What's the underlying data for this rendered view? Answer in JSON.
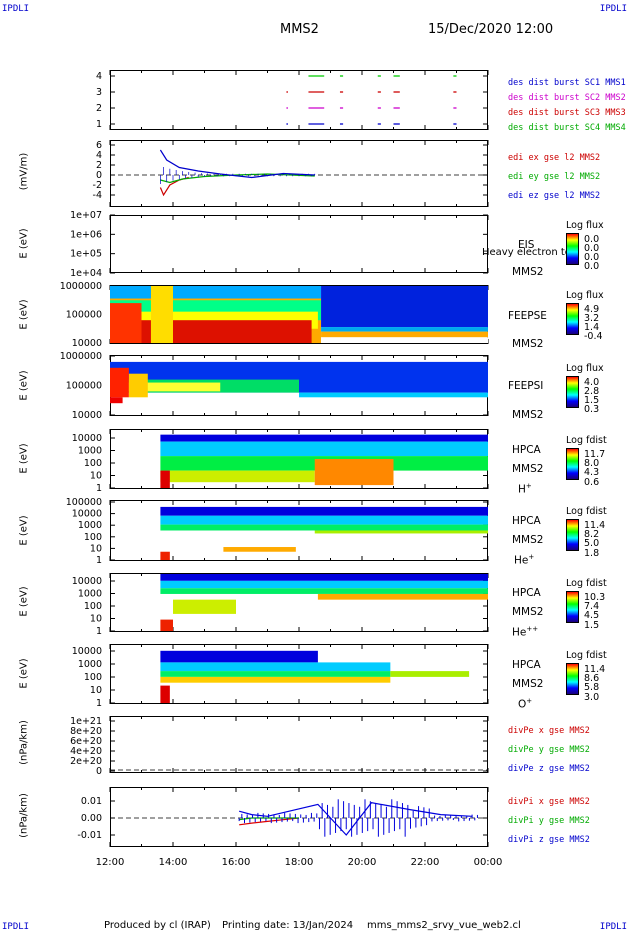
{
  "corners": {
    "tl": "IPDLI",
    "tr": "IPDLI",
    "bl": "IPDLI",
    "br": "IPDLI"
  },
  "header": {
    "title": "MMS2",
    "date": "15/Dec/2020 12:00"
  },
  "footer": {
    "producer": "Produced by cl (IRAP)",
    "printing": "Printing date: 13/Jan/2024",
    "file": "mms_mms2_srvy_vue_web2.cl"
  },
  "colors": {
    "mms1": "#0000cc",
    "mms2": "#cc00cc",
    "mms3": "#cc0000",
    "mms4": "#00cc00",
    "ex": "#cc0000",
    "ey": "#00aa00",
    "ez": "#0000cc"
  },
  "chart_data": [
    {
      "type": "scatter",
      "id": "burst",
      "yticks": [
        "4",
        "3",
        "2",
        "1"
      ],
      "ylim": [
        0.5,
        4.5
      ],
      "legend": [
        "des dist burst SC1 MMS1",
        "des dist burst SC2 MMS2",
        "des dist burst SC3 MMS3",
        "des dist burst SC4 MMS4"
      ],
      "series": [
        {
          "name": "des dist burst SC1 MMS1",
          "y": 1,
          "x_hours": [
            [
              17.6,
              17.65
            ],
            [
              18.3,
              18.8
            ],
            [
              19.3,
              19.4
            ],
            [
              20.5,
              20.6
            ],
            [
              21.0,
              21.2
            ],
            [
              22.9,
              23.0
            ]
          ]
        },
        {
          "name": "des dist burst SC2 MMS2",
          "y": 2,
          "x_hours": [
            [
              17.6,
              17.65
            ],
            [
              18.3,
              18.8
            ],
            [
              19.3,
              19.4
            ],
            [
              20.5,
              20.6
            ],
            [
              21.0,
              21.2
            ],
            [
              22.9,
              23.0
            ]
          ]
        },
        {
          "name": "des dist burst SC3 MMS3",
          "y": 3,
          "x_hours": [
            [
              17.6,
              17.65
            ],
            [
              18.3,
              18.8
            ],
            [
              19.3,
              19.4
            ],
            [
              20.5,
              20.6
            ],
            [
              21.0,
              21.2
            ],
            [
              22.9,
              23.0
            ]
          ]
        },
        {
          "name": "des dist burst SC4 MMS4",
          "y": 4,
          "x_hours": [
            [
              18.3,
              18.8
            ],
            [
              19.3,
              19.4
            ],
            [
              20.5,
              20.6
            ],
            [
              21.0,
              21.2
            ],
            [
              22.9,
              23.0
            ]
          ]
        }
      ]
    },
    {
      "type": "line",
      "id": "edi",
      "ylabel": "(mV/m)",
      "yticks": [
        "6",
        "4",
        "2",
        "0",
        "-2",
        "-4"
      ],
      "ylim": [
        -5,
        6.5
      ],
      "legend": [
        "edi ex gse l2 MMS2",
        "edi ey gse l2 MMS2",
        "edi ez gse l2 MMS2"
      ],
      "series": [
        {
          "name": "edi ex gse l2 MMS2",
          "x": [
            13.6,
            13.7,
            13.9,
            14.2,
            14.5
          ],
          "y": [
            -2.5,
            -4,
            -2,
            -1,
            -0.5
          ]
        },
        {
          "name": "edi ey gse l2 MMS2",
          "x": [
            13.6,
            13.9,
            14.3,
            15,
            16,
            17,
            18.5
          ],
          "y": [
            -1,
            -1.5,
            -0.8,
            -0.3,
            0,
            0.2,
            -0.2
          ]
        },
        {
          "name": "edi ez gse l2 MMS2",
          "x": [
            13.6,
            13.8,
            14.2,
            14.8,
            15.5,
            16.5,
            17.5,
            18.5
          ],
          "y": [
            5,
            3,
            1.5,
            0.8,
            0.2,
            -0.5,
            0.3,
            0
          ]
        }
      ]
    },
    {
      "type": "heatmap",
      "id": "eis",
      "ylabel": "E (eV)",
      "yticks": [
        "1e+07",
        "1e+06",
        "1e+05",
        "1e+04"
      ],
      "labels": [
        "EIS",
        "MMS2"
      ],
      "overlay": "Heavy electron to",
      "cbar_title": "Log flux",
      "cbar_ticks": [
        "0.0",
        "0.0",
        "0.0",
        "0.0"
      ]
    },
    {
      "type": "heatmap",
      "id": "feepse",
      "ylabel": "E (eV)",
      "yticks": [
        "1000000",
        "100000",
        "10000"
      ],
      "labels": [
        "FEEPSE",
        "MMS2"
      ],
      "cbar_title": "Log flux",
      "cbar_ticks": [
        "4.9",
        "3.2",
        "1.4",
        "-0.4"
      ]
    },
    {
      "type": "heatmap",
      "id": "feepsi",
      "ylabel": "E (eV)",
      "yticks": [
        "1000000",
        "100000",
        "10000"
      ],
      "labels": [
        "FEEPSI",
        "MMS2"
      ],
      "cbar_title": "Log flux",
      "cbar_ticks": [
        "4.0",
        "2.8",
        "1.5",
        "0.3"
      ]
    },
    {
      "type": "heatmap",
      "id": "hpca_h",
      "ylabel": "E (eV)",
      "yticks": [
        "10000",
        "1000",
        "100",
        "10",
        "1"
      ],
      "labels": [
        "HPCA",
        "MMS2",
        "H",
        "+"
      ],
      "cbar_title": "Log fdist",
      "cbar_ticks": [
        "11.7",
        "8.0",
        "4.3",
        "0.6"
      ]
    },
    {
      "type": "heatmap",
      "id": "hpca_he",
      "ylabel": "E (eV)",
      "yticks": [
        "100000",
        "10000",
        "1000",
        "100",
        "10",
        "1"
      ],
      "labels": [
        "HPCA",
        "MMS2",
        "He",
        "+"
      ],
      "cbar_title": "Log fdist",
      "cbar_ticks": [
        "11.4",
        "8.2",
        "5.0",
        "1.8"
      ]
    },
    {
      "type": "heatmap",
      "id": "hpca_hepp",
      "ylabel": "E (eV)",
      "yticks": [
        "10000",
        "1000",
        "100",
        "10",
        "1"
      ],
      "labels": [
        "HPCA",
        "MMS2",
        "He",
        "++"
      ],
      "cbar_title": "Log fdist",
      "cbar_ticks": [
        "10.3",
        "7.4",
        "4.5",
        "1.5"
      ]
    },
    {
      "type": "heatmap",
      "id": "hpca_o",
      "ylabel": "E (eV)",
      "yticks": [
        "10000",
        "1000",
        "100",
        "10",
        "1"
      ],
      "labels": [
        "HPCA",
        "MMS2",
        "O",
        "+"
      ],
      "cbar_title": "Log fdist",
      "cbar_ticks": [
        "11.4",
        "8.6",
        "5.8",
        "3.0"
      ]
    },
    {
      "type": "line",
      "id": "divpe",
      "ylabel": "(nPa/km)",
      "yticks": [
        "1e+21",
        "8e+20",
        "6e+20",
        "4e+20",
        "2e+20",
        "0"
      ],
      "legend": [
        "divPe x gse MMS2",
        "divPe y gse MMS2",
        "divPe z gse MMS2"
      ],
      "series": []
    },
    {
      "type": "line",
      "id": "divpi",
      "ylabel": "(nPa/km)",
      "yticks": [
        "0.01",
        "0.00",
        "-0.01"
      ],
      "ylim": [
        -0.015,
        0.015
      ],
      "legend": [
        "divPi x gse MMS2",
        "divPi y gse MMS2",
        "divPi z gse MMS2"
      ],
      "series": [
        {
          "name": "divPi x gse MMS2",
          "x": [
            16.1,
            16.5,
            17.0,
            17.5,
            18.0
          ],
          "y": [
            -0.004,
            -0.003,
            -0.002,
            -0.001,
            0
          ]
        },
        {
          "name": "divPi y gse MMS2",
          "x": [
            16.1,
            16.5,
            17.0,
            17.5,
            18.0
          ],
          "y": [
            -0.001,
            0,
            0,
            0,
            0
          ]
        },
        {
          "name": "divPi z gse MMS2",
          "x": [
            16.1,
            16.5,
            17.0,
            18.6,
            19.5,
            20.3,
            21.5,
            22.5,
            23.5
          ],
          "y": [
            0.004,
            0.002,
            0.001,
            0.008,
            -0.01,
            0.009,
            0.005,
            0.002,
            0.001
          ]
        }
      ]
    }
  ],
  "xaxis": {
    "ticks": [
      "12:00",
      "14:00",
      "16:00",
      "18:00",
      "20:00",
      "22:00",
      "00:00"
    ],
    "range_hours": [
      12,
      24
    ]
  }
}
